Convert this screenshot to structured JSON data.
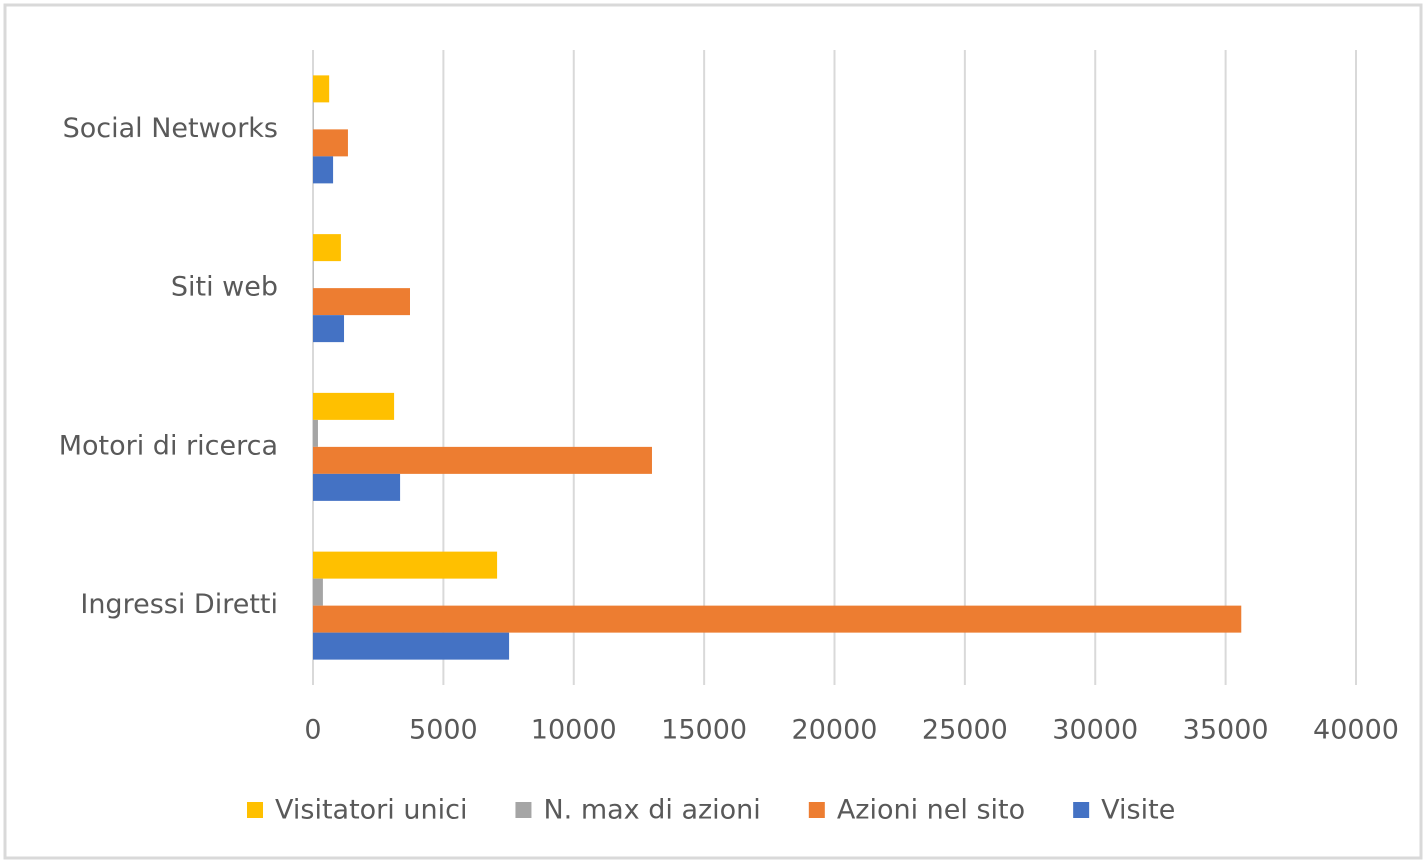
{
  "chart_data": {
    "type": "hbar",
    "categories": [
      "Social Networks",
      "Siti web",
      "Motori di ricerca",
      "Ingressi Diretti"
    ],
    "series": [
      {
        "name": "Visitatori unici",
        "color": "#ffc000",
        "values": [
          620,
          1070,
          3110,
          7060
        ]
      },
      {
        "name": "N. max di azioni",
        "color": "#a5a5a5",
        "values": [
          20,
          20,
          190,
          380
        ]
      },
      {
        "name": "Azioni nel sito",
        "color": "#ed7d31",
        "values": [
          1340,
          3720,
          13000,
          35600
        ]
      },
      {
        "name": "Visite",
        "color": "#4472c4",
        "values": [
          770,
          1190,
          3340,
          7520
        ]
      }
    ],
    "xlim": [
      0,
      40000
    ],
    "xticks": [
      0,
      5000,
      10000,
      15000,
      20000,
      25000,
      30000,
      35000,
      40000
    ],
    "grid": true,
    "legend": "bottom"
  }
}
